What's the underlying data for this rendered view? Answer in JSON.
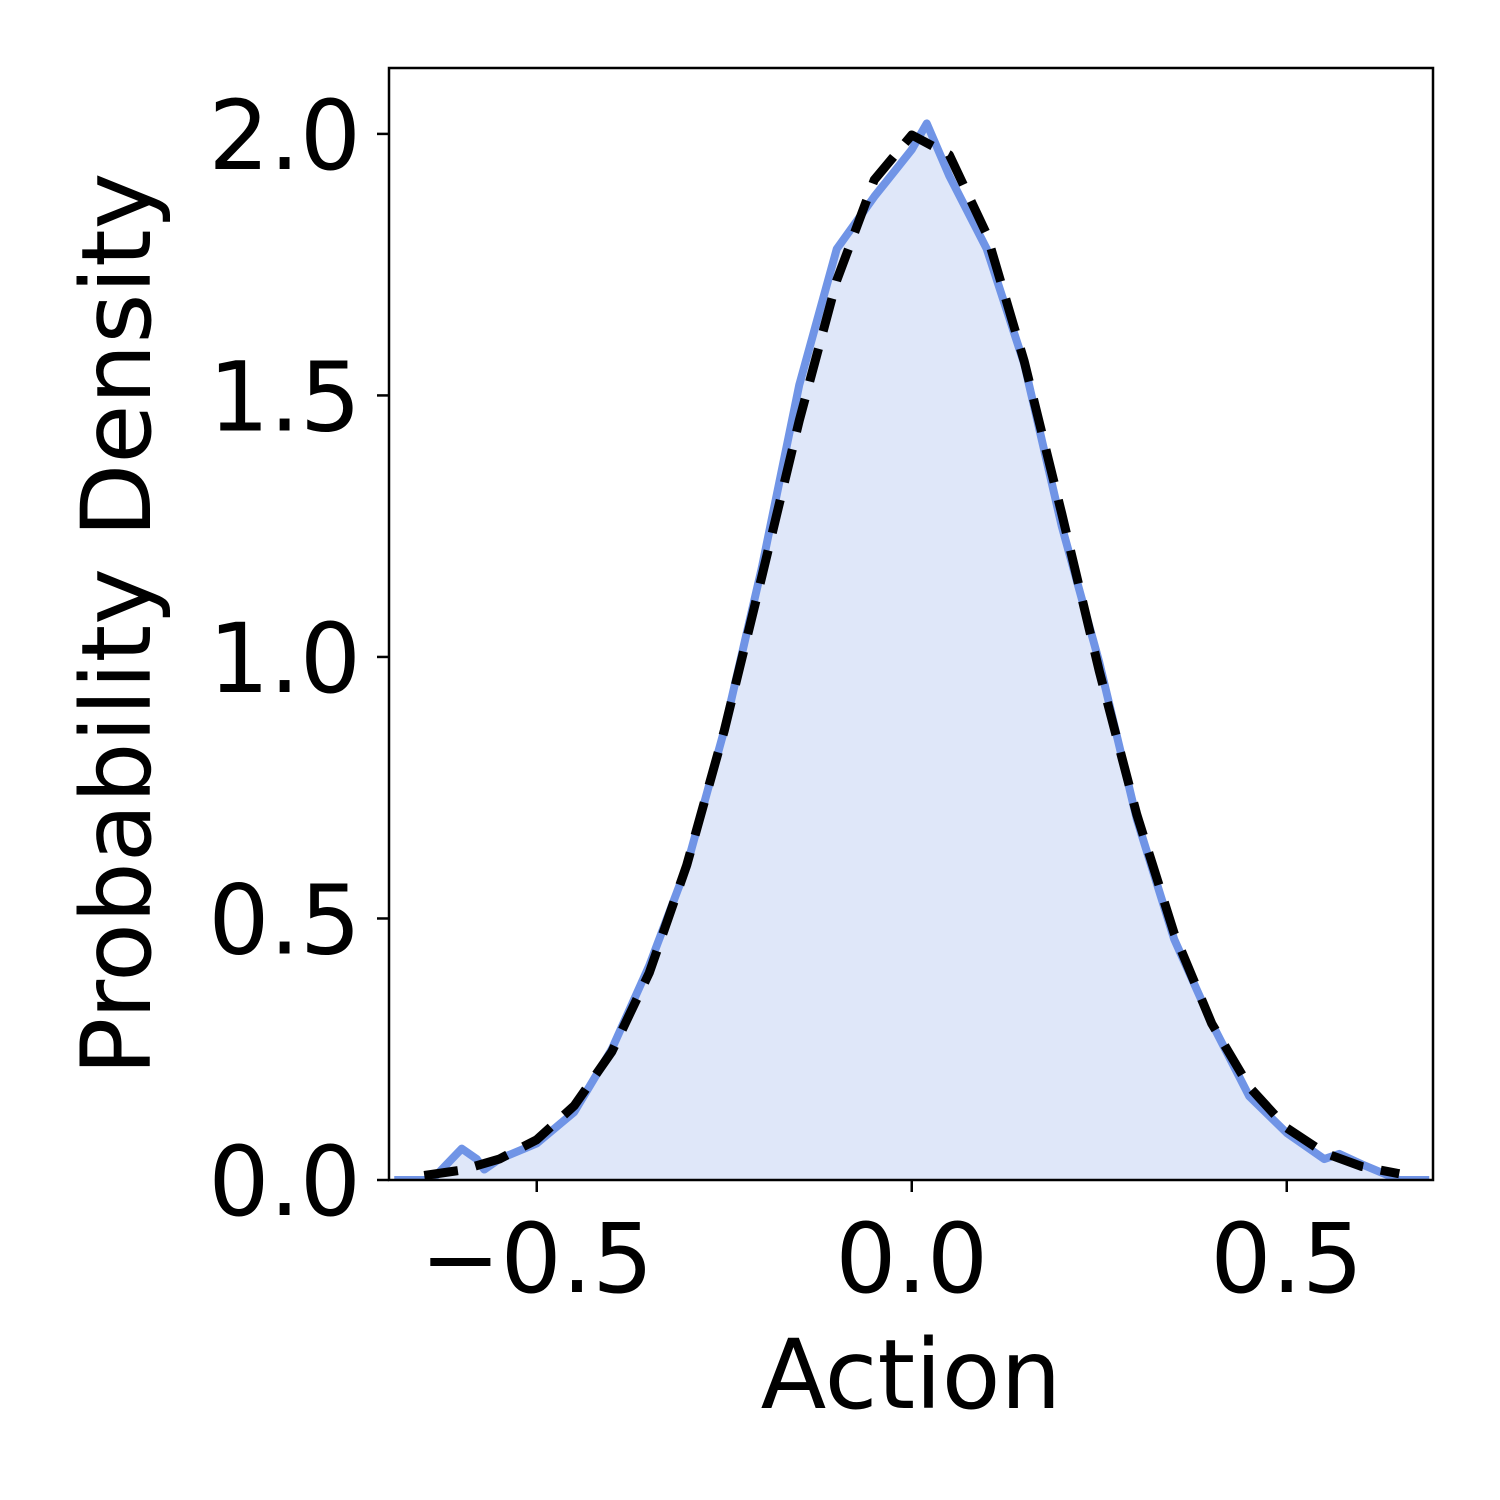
{
  "chart_data": {
    "type": "line",
    "x_label": "Action",
    "y_label": "Probability Density",
    "xlim": [
      -0.697,
      0.695
    ],
    "ylim": [
      0,
      2.126
    ],
    "xticks": [
      {
        "value": -0.5,
        "label": "−0.5"
      },
      {
        "value": 0,
        "label": "0.0"
      },
      0.5
    ],
    "yticks": [
      {
        "value": 0,
        "label": "0.0"
      },
      0.5,
      {
        "value": 1,
        "label": "1.0"
      },
      1.5,
      {
        "value": 2,
        "label": "2.0"
      }
    ],
    "grid": false,
    "series": [
      {
        "color": "#7094e6",
        "fill_color": "#dfe7f9",
        "dashed": false,
        "x": [
          -0.69,
          -0.64,
          -0.62,
          -0.6,
          -0.58,
          -0.57,
          -0.55,
          -0.5,
          -0.45,
          -0.4,
          -0.35,
          -0.3,
          -0.25,
          -0.2,
          -0.15,
          -0.1,
          -0.05,
          0,
          0.02,
          0.05,
          0.1,
          0.15,
          0.2,
          0.25,
          0.3,
          0.35,
          0.4,
          0.45,
          0.5,
          0.55,
          0.57,
          0.6,
          0.65,
          0.69
        ],
        "values": [
          0,
          0,
          0.03,
          0.06,
          0.04,
          0.02,
          0.04,
          0.07,
          0.13,
          0.25,
          0.41,
          0.6,
          0.86,
          1.17,
          1.52,
          1.78,
          1.88,
          1.97,
          2.02,
          1.92,
          1.78,
          1.56,
          1.25,
          0.99,
          0.69,
          0.46,
          0.3,
          0.16,
          0.09,
          0.04,
          0.05,
          0.03,
          0,
          0
        ]
      },
      {
        "color": "#000000",
        "dashed": true,
        "x": [
          -0.65,
          -0.6,
          -0.55,
          -0.5,
          -0.45,
          -0.4,
          -0.35,
          -0.3,
          -0.25,
          -0.2,
          -0.15,
          -0.1,
          -0.05,
          0,
          0.05,
          0.1,
          0.15,
          0.2,
          0.25,
          0.3,
          0.35,
          0.4,
          0.45,
          0.5,
          0.55,
          0.6,
          0.65
        ],
        "values": [
          0.0086,
          0.019,
          0.04,
          0.077,
          0.142,
          0.245,
          0.396,
          0.602,
          0.859,
          1.153,
          1.452,
          1.72,
          1.912,
          1.998,
          1.96,
          1.808,
          1.565,
          1.274,
          0.973,
          0.699,
          0.471,
          0.299,
          0.178,
          0.0995,
          0.052,
          0.0258,
          0.012
        ]
      }
    ]
  }
}
